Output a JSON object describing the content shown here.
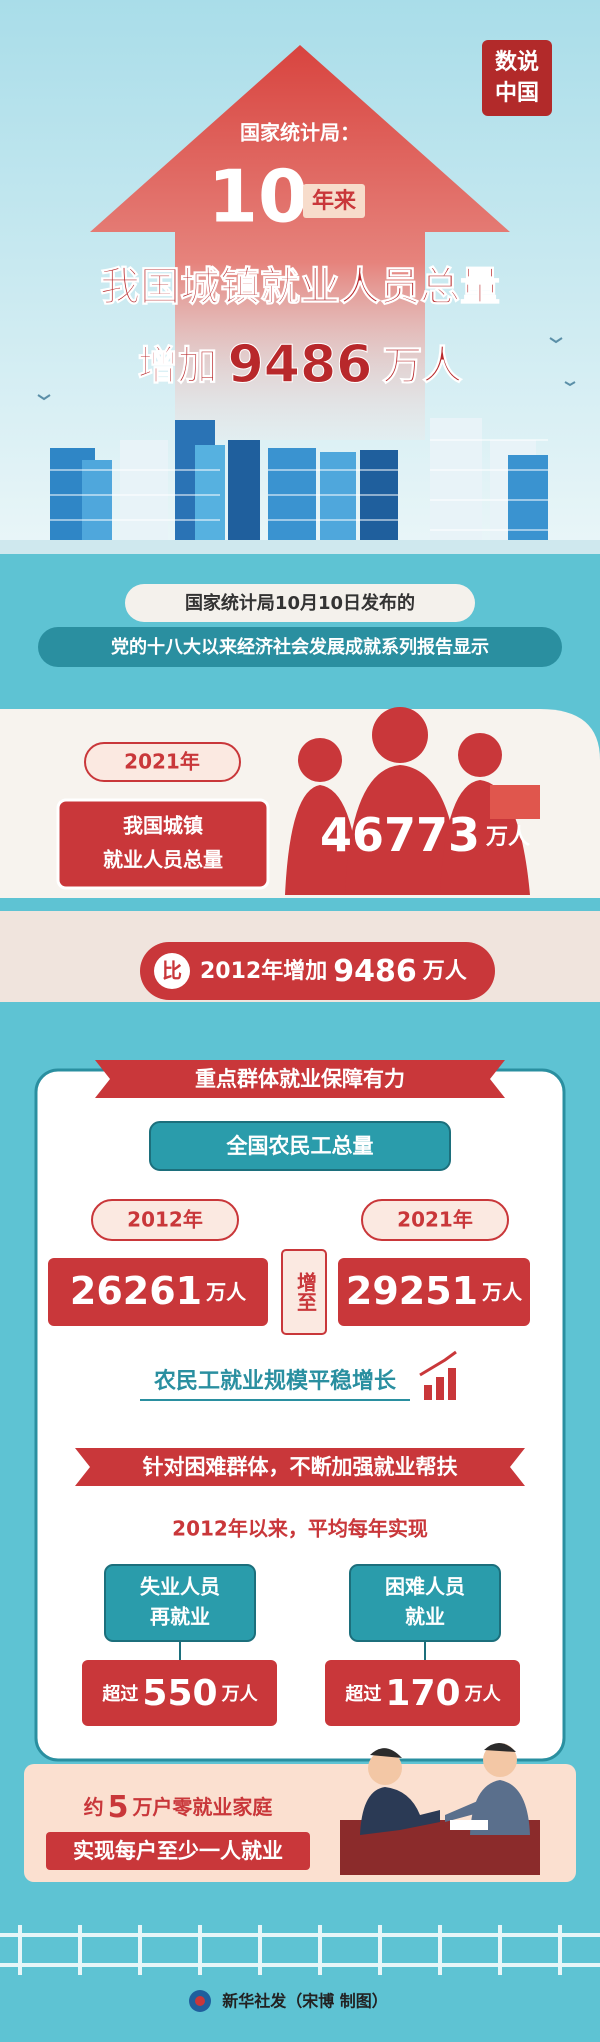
{
  "stamp": {
    "line1": "数说",
    "line2": "中国"
  },
  "header": {
    "source": "国家统计局：",
    "years": "10",
    "years_unit": "年来",
    "title": "我国城镇就业人员总量",
    "increase_prefix": "增加",
    "increase_value": "9486",
    "increase_unit": "万人"
  },
  "intro": {
    "line1": "国家统计局10月10日发布的",
    "line2": "党的十八大以来经济社会发展成就系列报告显示"
  },
  "total": {
    "year": "2021年",
    "label_line1": "我国城镇",
    "label_line2": "就业人员总量",
    "value": "46773",
    "unit": "万人"
  },
  "comparison": {
    "prefix": "比",
    "text": "2012年增加",
    "value": "9486",
    "unit": "万人"
  },
  "section": {
    "ribbon": "重点群体就业保障有力",
    "migrant": {
      "title": "全国农民工总量",
      "year_a": "2012年",
      "value_a": "26261",
      "unit_a": "万人",
      "connector": "增至",
      "year_b": "2021年",
      "value_b": "29251",
      "unit_b": "万人",
      "note": "农民工就业规模平稳增长"
    },
    "ribbon2": "针对困难群体，不断加强就业帮扶",
    "since": "2012年以来，平均每年实现",
    "groups": [
      {
        "label_line1": "失业人员",
        "label_line2": "再就业",
        "prefix": "超过",
        "value": "550",
        "unit": "万人"
      },
      {
        "label_line1": "困难人员",
        "label_line2": "就业",
        "prefix": "超过",
        "value": "170",
        "unit": "万人"
      }
    ],
    "households": {
      "prefix": "约",
      "value": "5",
      "suffix": "万户零就业家庭",
      "line2": "实现每户至少一人就业"
    }
  },
  "footer": {
    "credit": "新华社发（宋博 制图）"
  }
}
